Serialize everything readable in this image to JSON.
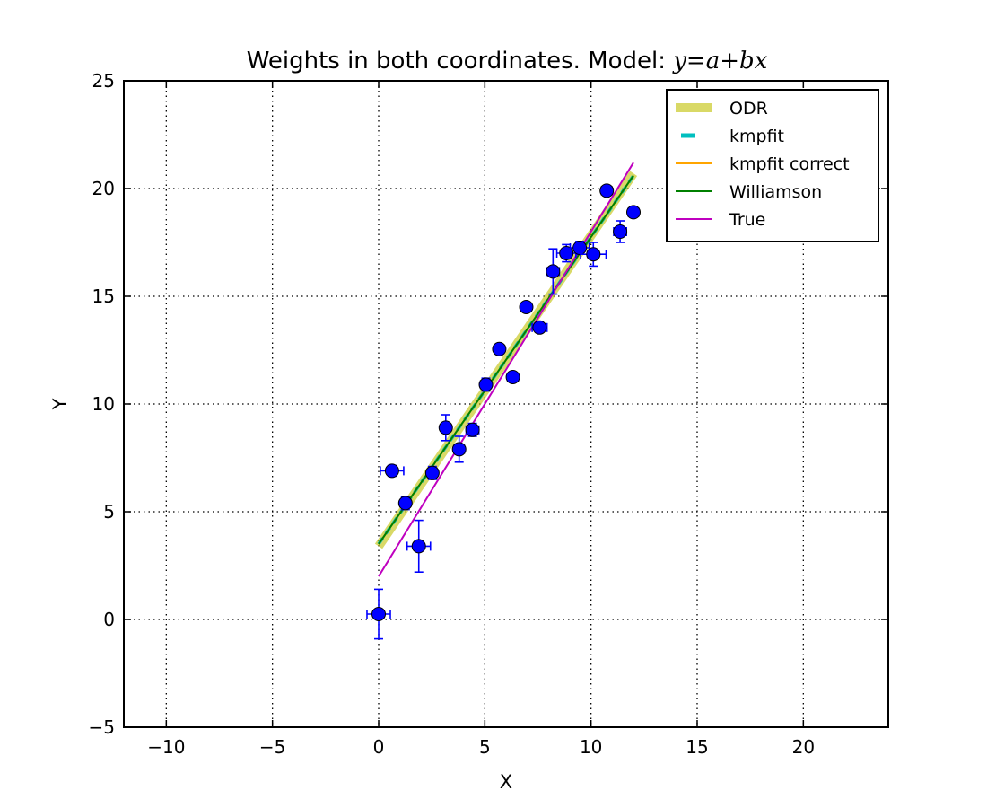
{
  "chart_data": {
    "type": "scatter",
    "title": "Weights in both coordinates. Model: y=a+bx",
    "title_text": "Weights in both coordinates. Model: ",
    "title_math": "y=a+bx",
    "xlabel": "X",
    "ylabel": "Y",
    "xlim": [
      -12,
      24
    ],
    "ylim": [
      -5,
      25
    ],
    "xticks": [
      -10,
      -5,
      0,
      5,
      10,
      15,
      20
    ],
    "yticks": [
      -5,
      0,
      5,
      10,
      15,
      20,
      25
    ],
    "xtick_labels": [
      "−10",
      "−5",
      "0",
      "5",
      "10",
      "15",
      "20"
    ],
    "ytick_labels": [
      "−5",
      "0",
      "5",
      "10",
      "15",
      "20",
      "25"
    ],
    "grid": true,
    "legend_position": "top-right",
    "points": [
      {
        "x": 0.0,
        "y": 0.25,
        "xerr": 0.55,
        "yerr": 1.15
      },
      {
        "x": 0.63,
        "y": 6.9,
        "xerr": 0.55,
        "yerr": 0.25
      },
      {
        "x": 1.26,
        "y": 5.4,
        "xerr": 0.2,
        "yerr": 0.3
      },
      {
        "x": 1.89,
        "y": 3.4,
        "xerr": 0.55,
        "yerr": 1.2
      },
      {
        "x": 2.53,
        "y": 6.8,
        "xerr": 0.2,
        "yerr": 0.3
      },
      {
        "x": 3.16,
        "y": 8.9,
        "xerr": 0.2,
        "yerr": 0.6
      },
      {
        "x": 3.79,
        "y": 7.9,
        "xerr": 0.25,
        "yerr": 0.6
      },
      {
        "x": 4.42,
        "y": 8.8,
        "xerr": 0.3,
        "yerr": 0.3
      },
      {
        "x": 5.05,
        "y": 10.9,
        "xerr": 0.25,
        "yerr": 0.3
      },
      {
        "x": 5.68,
        "y": 12.55,
        "xerr": 0.2,
        "yerr": 0.2
      },
      {
        "x": 6.32,
        "y": 11.25,
        "xerr": 0.25,
        "yerr": 0.2
      },
      {
        "x": 6.95,
        "y": 14.5,
        "xerr": 0.2,
        "yerr": 0.2
      },
      {
        "x": 7.58,
        "y": 13.55,
        "xerr": 0.35,
        "yerr": 0.2
      },
      {
        "x": 8.21,
        "y": 16.15,
        "xerr": 0.3,
        "yerr": 1.05
      },
      {
        "x": 8.84,
        "y": 17.0,
        "xerr": 0.45,
        "yerr": 0.4
      },
      {
        "x": 9.47,
        "y": 17.25,
        "xerr": 0.45,
        "yerr": 0.3
      },
      {
        "x": 10.11,
        "y": 16.95,
        "xerr": 0.6,
        "yerr": 0.55
      },
      {
        "x": 10.74,
        "y": 19.9,
        "xerr": 0.25,
        "yerr": 0.2
      },
      {
        "x": 11.37,
        "y": 18.0,
        "xerr": 0.3,
        "yerr": 0.5
      },
      {
        "x": 12.0,
        "y": 18.9,
        "xerr": 0.25,
        "yerr": 0.2
      }
    ],
    "series": [
      {
        "name": "ODR",
        "color": "#bfbf00",
        "style": "solid",
        "opacity": 0.6,
        "width": 10,
        "x": [
          0,
          12
        ],
        "y": [
          3.4,
          20.7
        ]
      },
      {
        "name": "kmpfit",
        "color": "#00bfbf",
        "style": "dashed",
        "opacity": 1,
        "width": 3.5,
        "x": [
          0,
          12
        ],
        "y": [
          3.5,
          20.6
        ]
      },
      {
        "name": "kmpfit correct",
        "color": "#ffa500",
        "style": "solid",
        "opacity": 1,
        "width": 2,
        "x": [
          0,
          12
        ],
        "y": [
          3.5,
          20.6
        ]
      },
      {
        "name": "Williamson",
        "color": "#008000",
        "style": "solid",
        "opacity": 1,
        "width": 2,
        "x": [
          0,
          12
        ],
        "y": [
          3.5,
          20.6
        ]
      },
      {
        "name": "True",
        "color": "#bf00bf",
        "style": "solid",
        "opacity": 1,
        "width": 2,
        "x": [
          0,
          12
        ],
        "y": [
          2.0,
          21.2
        ]
      }
    ],
    "marker_color": "#0000ff",
    "errorbar_color": "#0000ff"
  }
}
